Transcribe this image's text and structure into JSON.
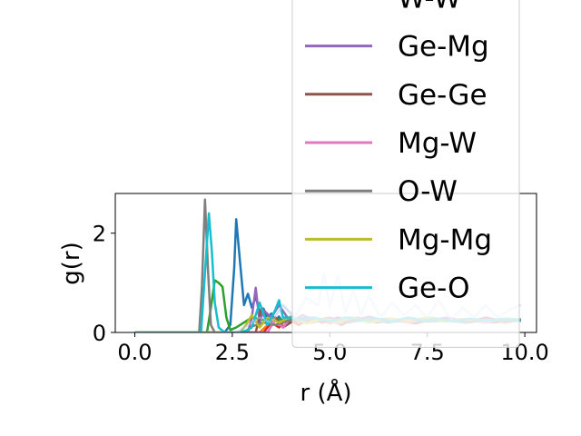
{
  "chart_data": {
    "type": "line",
    "xlabel": "r (Å)",
    "ylabel": "g(r)",
    "xlim": [
      -0.5,
      10.3
    ],
    "ylim": [
      0,
      2.8
    ],
    "grid": false,
    "legend_placement": "upper-right (overflowing above the axes)",
    "xticks": [
      0.0,
      2.5,
      5.0,
      7.5,
      10.0
    ],
    "xtick_labels": [
      "0.0",
      "2.5",
      "5.0",
      "7.5",
      "10.0"
    ],
    "yticks": [
      0,
      2
    ],
    "ytick_labels": [
      "0",
      "2"
    ],
    "series": [
      {
        "name": "",
        "color": "#1f77b4",
        "x": [
          0,
          1.6,
          2.3,
          2.45,
          2.55,
          2.6,
          2.7,
          2.8,
          2.9,
          3.0,
          3.1,
          3.2,
          3.3,
          3.4,
          3.5,
          3.6,
          3.7,
          3.8,
          3.9,
          4.0,
          4.5,
          5.0,
          5.5,
          6.0,
          6.5,
          7.0,
          7.5,
          8.0,
          8.5,
          9.0,
          9.5,
          9.9
        ],
        "y": [
          0,
          0,
          0,
          0.15,
          1.3,
          2.28,
          1.4,
          0.55,
          0.78,
          0.5,
          0.72,
          0.4,
          0.48,
          0.3,
          0.38,
          0.25,
          0.32,
          0.2,
          0.28,
          0.25,
          0.3,
          0.22,
          0.3,
          0.25,
          0.28,
          0.22,
          0.3,
          0.25,
          0.27,
          0.24,
          0.28,
          0.26
        ]
      },
      {
        "name": "",
        "color": "#ff7f0e",
        "x": [
          0,
          3.2,
          3.4,
          3.6,
          3.8,
          4.0,
          4.3,
          4.6,
          5.0,
          5.3,
          5.6,
          6.0,
          6.5,
          7.0,
          7.5,
          8.0,
          8.5,
          9.0,
          9.5,
          9.9
        ],
        "y": [
          0,
          0,
          0.15,
          0.3,
          0.12,
          0.25,
          0.2,
          0.3,
          0.18,
          0.28,
          0.22,
          0.3,
          0.2,
          0.28,
          0.22,
          0.26,
          0.22,
          0.28,
          0.2,
          0.25
        ]
      },
      {
        "name": "",
        "color": "#2ca02c",
        "x": [
          0,
          1.85,
          1.95,
          2.05,
          2.15,
          2.25,
          2.35,
          2.45,
          2.6,
          2.8,
          3.0,
          3.3,
          3.6,
          4.0,
          4.5,
          5.0,
          5.5,
          6.0,
          6.5,
          7.0,
          7.5,
          8.0,
          8.5,
          9.0,
          9.5,
          9.9
        ],
        "y": [
          0,
          0,
          0.5,
          1.05,
          1.0,
          0.92,
          0.3,
          0.05,
          0.1,
          0.2,
          0.3,
          0.25,
          0.28,
          0.22,
          0.28,
          0.24,
          0.26,
          0.22,
          0.28,
          0.24,
          0.26,
          0.22,
          0.27,
          0.24,
          0.26,
          0.24
        ]
      },
      {
        "name": "W-W",
        "color": "#d62728",
        "x": [
          0,
          3.3,
          3.5,
          3.7,
          3.9,
          4.2,
          4.5,
          4.8,
          5.2,
          5.6,
          6.0,
          6.5,
          7.0,
          7.5,
          8.0,
          8.5,
          9.0,
          9.5,
          9.9
        ],
        "y": [
          0,
          0,
          0.2,
          0.1,
          0.3,
          0.15,
          0.28,
          0.2,
          0.3,
          0.22,
          0.28,
          0.2,
          0.3,
          0.24,
          0.26,
          0.2,
          0.3,
          0.22,
          0.26
        ]
      },
      {
        "name": "Ge-Mg",
        "color": "#9467bd",
        "x": [
          0,
          2.9,
          3.0,
          3.1,
          3.2,
          3.3,
          3.5,
          3.7,
          4.0,
          4.3,
          4.6,
          5.0,
          5.5,
          6.0,
          6.5,
          7.0,
          7.5,
          8.0,
          8.5,
          9.0,
          9.5,
          9.9
        ],
        "y": [
          0,
          0,
          0.3,
          0.9,
          0.2,
          0.45,
          0.3,
          0.55,
          0.2,
          0.35,
          0.25,
          0.3,
          0.2,
          0.32,
          0.22,
          0.28,
          0.24,
          0.3,
          0.22,
          0.27,
          0.24,
          0.26
        ]
      },
      {
        "name": "Ge-Ge",
        "color": "#8c564b",
        "x": [
          0,
          3.1,
          3.25,
          3.4,
          3.6,
          3.8,
          4.1,
          4.5,
          4.9,
          5.3,
          5.7,
          6.2,
          6.7,
          7.2,
          7.7,
          8.2,
          8.7,
          9.2,
          9.7,
          9.9
        ],
        "y": [
          0,
          0,
          0.5,
          0.15,
          0.3,
          0.1,
          0.25,
          0.2,
          0.28,
          0.15,
          0.3,
          0.2,
          0.25,
          0.18,
          0.28,
          0.22,
          0.26,
          0.2,
          0.25,
          0.24
        ]
      },
      {
        "name": "Mg-W",
        "color": "#e377c2",
        "x": [
          0,
          3.4,
          3.6,
          3.8,
          4.0,
          4.4,
          4.8,
          5.2,
          5.6,
          6.0,
          6.5,
          7.0,
          7.5,
          8.0,
          8.5,
          9.0,
          9.5,
          9.9
        ],
        "y": [
          0,
          0,
          0.25,
          0.1,
          0.3,
          0.2,
          0.28,
          0.18,
          0.3,
          0.22,
          0.26,
          0.2,
          0.28,
          0.22,
          0.25,
          0.2,
          0.27,
          0.23
        ]
      },
      {
        "name": "O-W",
        "color": "#7f7f7f",
        "x": [
          0,
          1.65,
          1.72,
          1.8,
          1.88,
          1.95,
          2.05,
          2.15,
          2.25,
          2.4,
          2.6,
          2.8,
          3.0,
          3.3,
          3.6,
          4.0,
          4.5,
          5.0,
          5.5,
          6.0,
          6.5,
          7.0,
          7.5,
          8.0,
          8.5,
          9.0,
          9.5,
          9.9
        ],
        "y": [
          0,
          0,
          0.9,
          2.68,
          1.2,
          0.15,
          0.0,
          0.0,
          0.0,
          0.0,
          0.0,
          0.0,
          0.12,
          0.2,
          0.15,
          0.25,
          0.2,
          0.26,
          0.22,
          0.25,
          0.2,
          0.26,
          0.22,
          0.24,
          0.2,
          0.25,
          0.22,
          0.24
        ]
      },
      {
        "name": "Mg-Mg",
        "color": "#bcbd22",
        "x": [
          0,
          2.7,
          2.85,
          3.0,
          3.2,
          3.4,
          3.7,
          4.0,
          4.4,
          4.8,
          5.2,
          5.6,
          6.0,
          6.5,
          7.0,
          7.5,
          8.0,
          8.5,
          9.0,
          9.5,
          9.9
        ],
        "y": [
          0,
          0,
          0.15,
          0.35,
          0.1,
          0.3,
          0.2,
          0.32,
          0.18,
          0.28,
          0.22,
          0.3,
          0.2,
          0.28,
          0.24,
          0.3,
          0.22,
          0.27,
          0.24,
          0.28,
          0.25
        ]
      },
      {
        "name": "Ge-O",
        "color": "#17becf",
        "x": [
          0,
          1.7,
          1.8,
          1.9,
          1.98,
          2.05,
          2.15,
          2.3,
          2.5,
          2.7,
          2.9,
          3.0,
          3.2,
          3.4,
          3.6,
          3.7,
          3.8,
          4.0,
          4.3,
          4.6,
          5.0,
          5.4,
          5.8,
          6.2,
          6.6,
          7.0,
          7.4,
          7.8,
          8.2,
          8.6,
          9.0,
          9.4,
          9.9
        ],
        "y": [
          0,
          0,
          1.2,
          2.4,
          1.6,
          0.6,
          0.1,
          0.0,
          0.0,
          0.0,
          0.05,
          0.1,
          0.6,
          0.15,
          0.45,
          0.65,
          0.3,
          0.3,
          0.25,
          0.3,
          0.22,
          0.3,
          0.25,
          0.28,
          0.22,
          0.3,
          0.24,
          0.27,
          0.22,
          0.28,
          0.24,
          0.27,
          0.25
        ]
      },
      {
        "name": "",
        "color": "#aec7e8",
        "opacity": 0.55,
        "x": [
          0,
          2.6,
          2.9,
          3.2,
          3.5,
          3.8,
          4.1,
          4.4,
          4.7,
          4.85,
          5.0,
          5.2,
          5.4,
          5.6,
          5.8,
          6.0,
          6.3,
          6.6,
          6.9,
          7.2,
          7.5,
          7.8,
          8.1,
          8.4,
          8.7,
          9.0,
          9.3,
          9.6,
          9.9
        ],
        "y": [
          0,
          0,
          0.15,
          0.3,
          0.2,
          0.55,
          0.3,
          0.7,
          0.55,
          1.2,
          0.5,
          1.15,
          0.4,
          0.85,
          0.35,
          0.75,
          0.3,
          0.6,
          0.35,
          0.55,
          0.3,
          0.65,
          0.25,
          0.5,
          0.3,
          0.55,
          0.3,
          0.45,
          0.55
        ]
      }
    ]
  }
}
